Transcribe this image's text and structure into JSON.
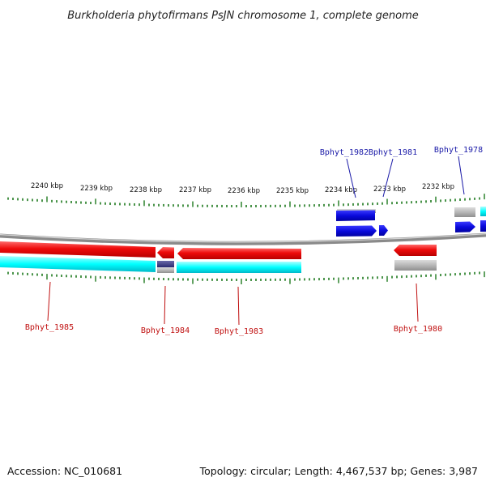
{
  "title": "Burkholderia phytofirmans PsJN chromosome 1, complete genome",
  "accession": "Accession: NC_010681",
  "summary": "Topology: circular; Length: 4,467,537 bp; Genes: 3,987",
  "kbp_labels": [
    "2240 kbp",
    "2239 kbp",
    "2238 kbp",
    "2237 kbp",
    "2236 kbp",
    "2235 kbp",
    "2234 kbp",
    "2233 kbp",
    "2232 kbp"
  ],
  "genes_top": [
    "Bphyt_1982",
    "Bphyt_1981",
    "Bphyt_1978"
  ],
  "genes_bottom": [
    "Bphyt_1985",
    "Bphyt_1984",
    "Bphyt_1983",
    "Bphyt_1980"
  ],
  "colors": {
    "forward_cds": "#0a0adc",
    "reverse_cds": "#ee0b0b",
    "gene_shading": "#b7b7b7",
    "cyan_track": "#00ffff",
    "tick_green": "#1e7a1e",
    "backbone_grey": "#8a8a8a",
    "navy_gene": "#3a3a80"
  }
}
